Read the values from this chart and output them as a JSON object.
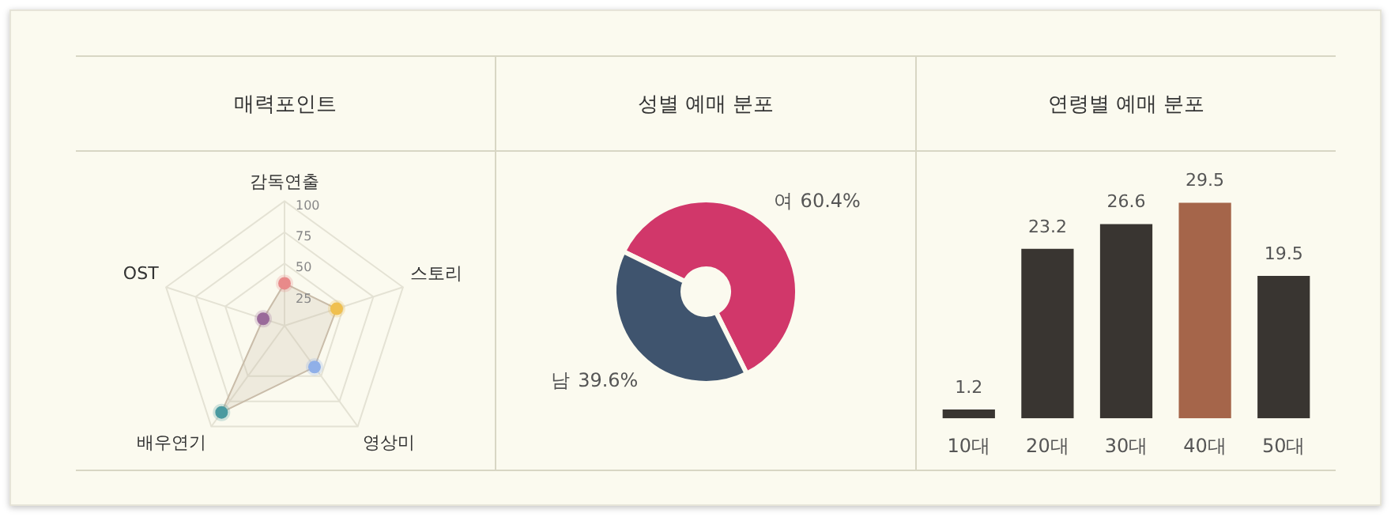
{
  "chart_data": [
    {
      "type": "radar",
      "title": "매력포인트",
      "categories": [
        "감독연출",
        "스토리",
        "영상미",
        "배우연기",
        "OST"
      ],
      "series": [
        {
          "color": "#c9bca9",
          "values": [
            34,
            44,
            41,
            86,
            18
          ],
          "colors": [
            "#e88a8a",
            "#f0c050",
            "#90b0e8",
            "#4a9aa0",
            "#9a6a9a"
          ]
        }
      ],
      "ylim": [
        0,
        100
      ],
      "yticks": [
        25,
        50,
        75,
        100
      ],
      "grid": true,
      "marker": "circle"
    },
    {
      "type": "donut",
      "title": "성별 예매 분포",
      "categories": [
        "여",
        "남"
      ],
      "values": [
        60.4,
        39.6
      ],
      "colors": [
        "#d1376a",
        "#3f546e"
      ],
      "value_labels": [
        "60.4%",
        "39.6%"
      ]
    },
    {
      "type": "bar",
      "title": "연령별 예매 분포",
      "categories": [
        "10대",
        "20대",
        "30대",
        "40대",
        "50대"
      ],
      "values": [
        1.2,
        23.2,
        26.6,
        29.5,
        19.5
      ],
      "colors": [
        "#393531",
        "#393531",
        "#393531",
        "#a5654a",
        "#393531"
      ],
      "data_labels": true
    }
  ]
}
